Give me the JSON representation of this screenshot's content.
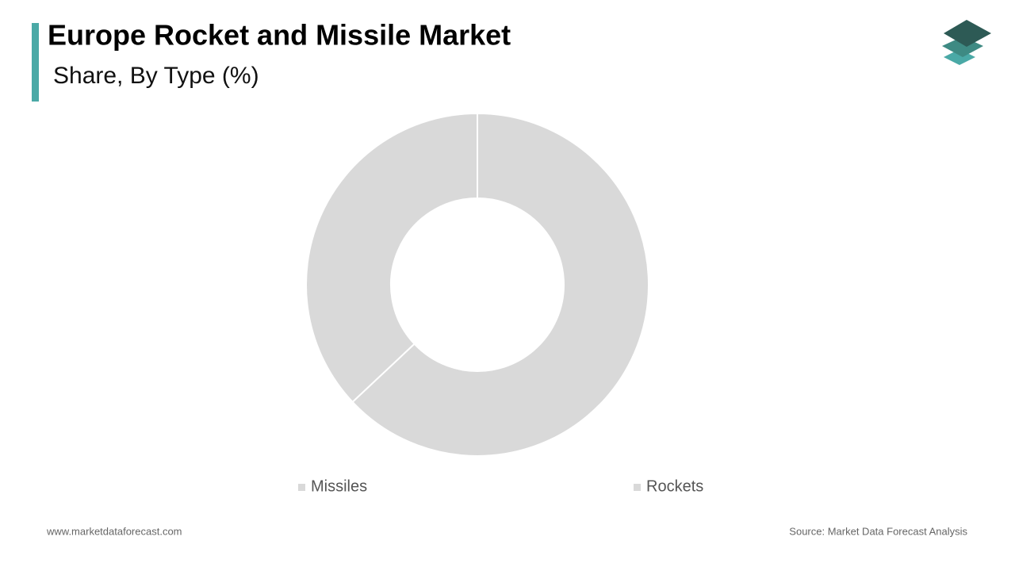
{
  "chart_data": {
    "type": "pie",
    "title": "Europe Rocket and Missile Market",
    "subtitle": "Share, By Type (%)",
    "categories": [
      "Missiles",
      "Rockets"
    ],
    "values": [
      63,
      37
    ],
    "colors": [
      "#d9d9d9",
      "#d9d9d9"
    ],
    "donut": true
  },
  "footer": {
    "website": "www.marketdataforecast.com",
    "source": "Source: Market Data Forecast Analysis"
  }
}
